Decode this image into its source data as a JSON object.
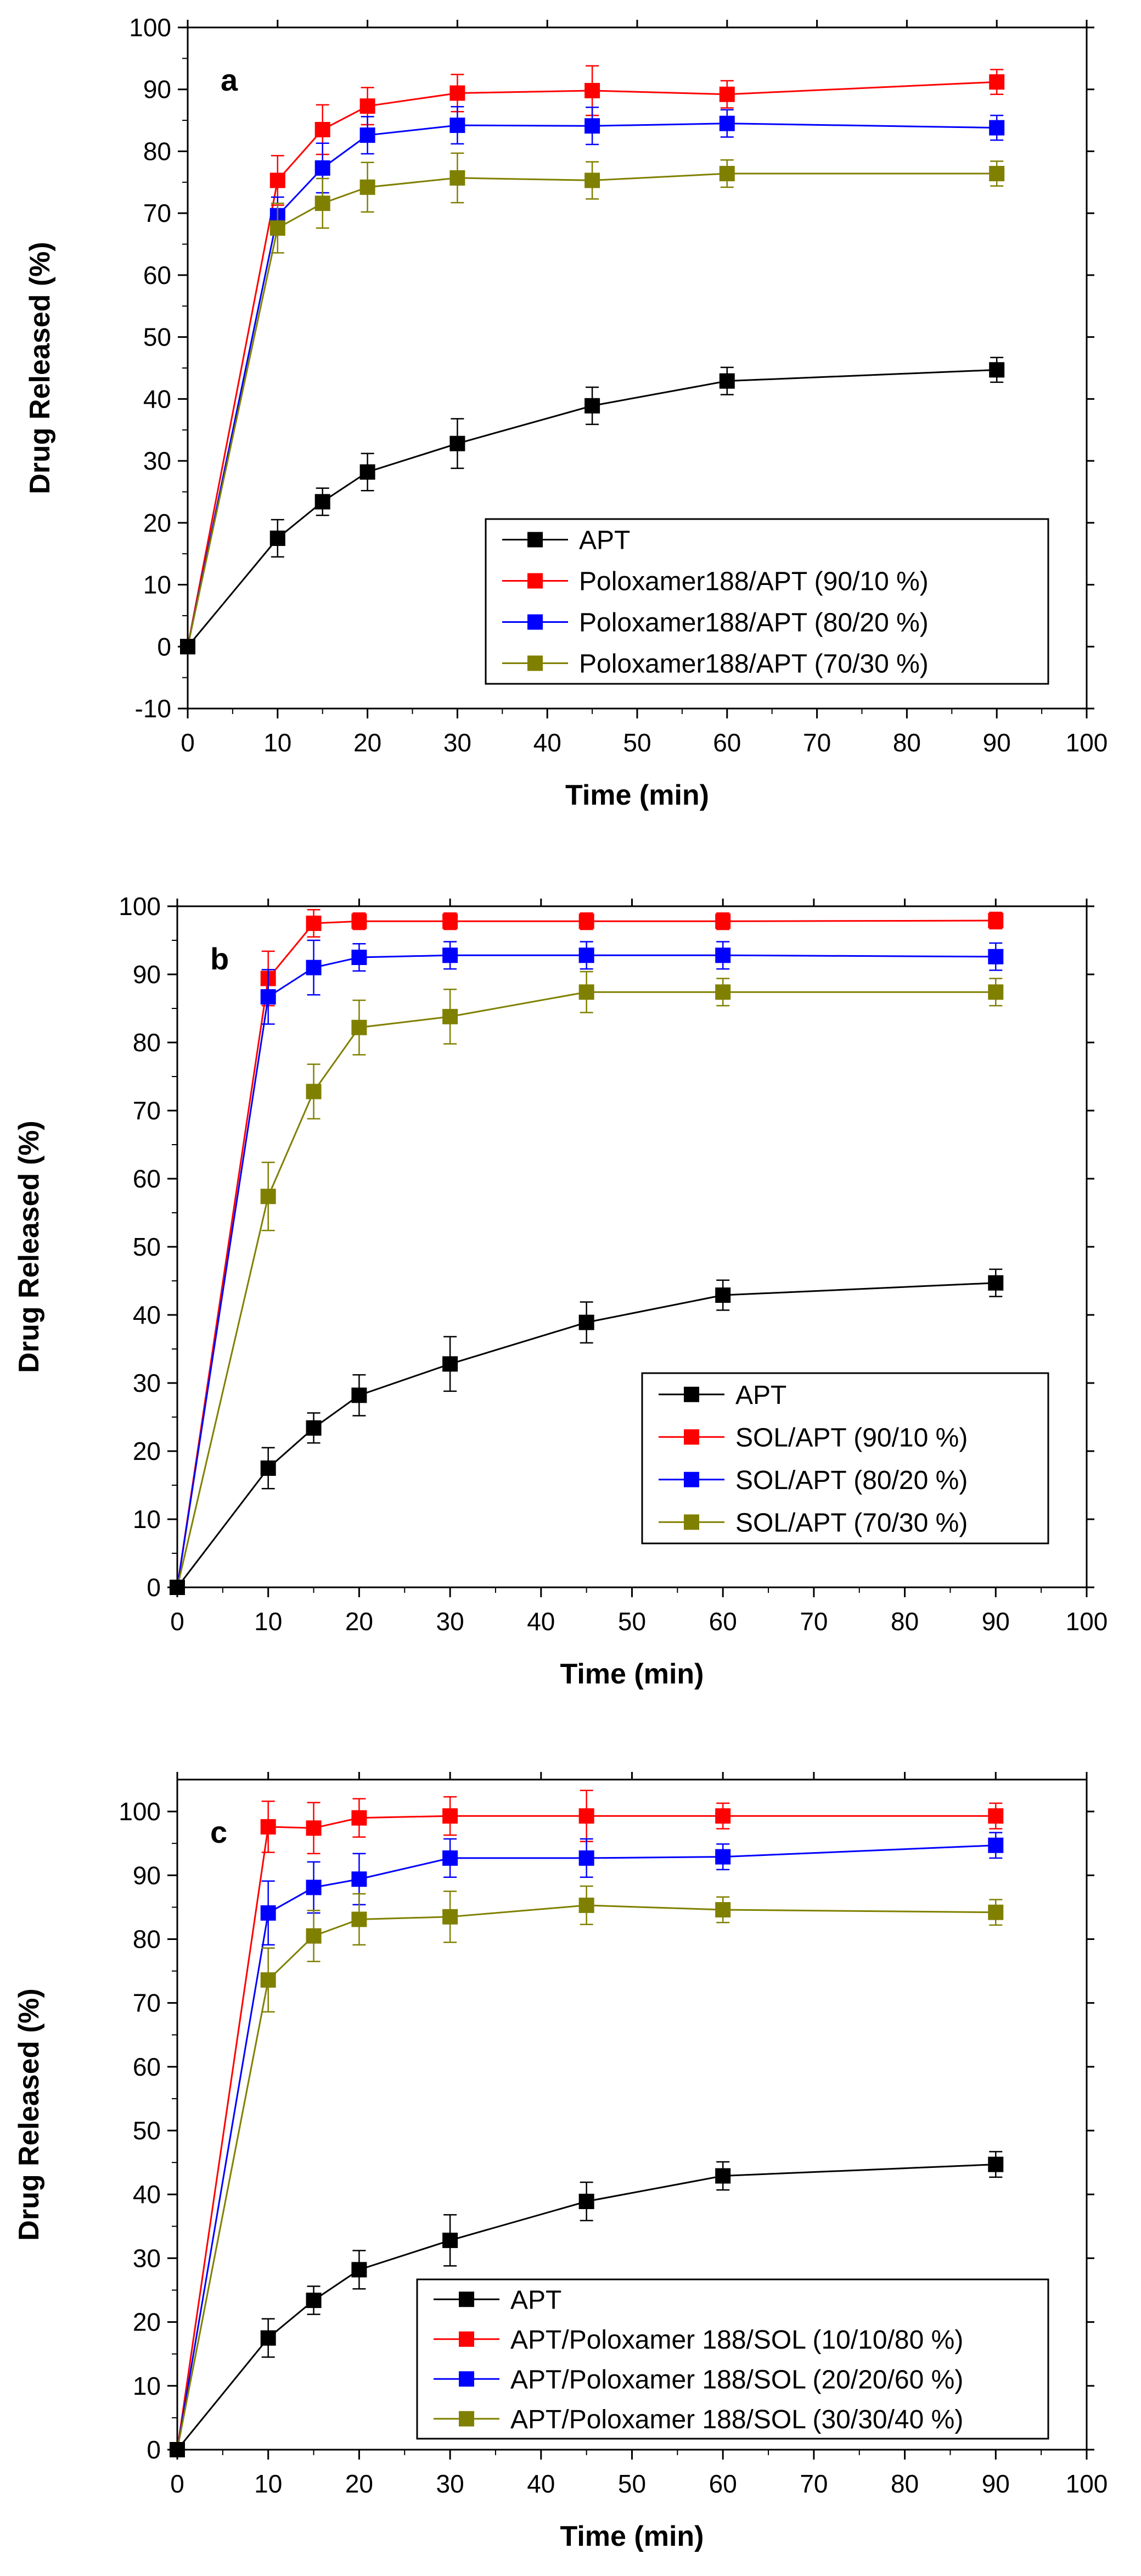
{
  "chart_data": [
    {
      "type": "line",
      "panel_label": "a",
      "xlabel": "Time (min)",
      "ylabel": "Drug Released (%)",
      "xlim": [
        0,
        100
      ],
      "ylim": [
        -10,
        100
      ],
      "xticks": [
        "0",
        "10",
        "20",
        "30",
        "40",
        "50",
        "60",
        "70",
        "80",
        "90",
        "100"
      ],
      "yticks": [
        "-10",
        "0",
        "10",
        "20",
        "30",
        "40",
        "50",
        "60",
        "70",
        "80",
        "90",
        "100"
      ],
      "legend_position": "bottom-right",
      "x": [
        0,
        10,
        15,
        20,
        30,
        45,
        60,
        90
      ],
      "series": [
        {
          "name": "APT",
          "color": "#000000",
          "values": [
            0,
            17.5,
            23.4,
            28.2,
            32.8,
            38.9,
            42.9,
            44.7
          ],
          "errors": [
            0,
            3.0,
            2.2,
            3.0,
            4.0,
            3.0,
            2.2,
            2.0
          ]
        },
        {
          "name": "Poloxamer188/APT (90/10 %)",
          "color": "#ff0000",
          "values": [
            0,
            75.3,
            83.5,
            87.3,
            89.4,
            89.8,
            89.2,
            91.2
          ],
          "errors": [
            0,
            4.0,
            4.0,
            3.0,
            3.0,
            4.0,
            2.2,
            2.0
          ]
        },
        {
          "name": "Poloxamer188/APT (80/20 %)",
          "color": "#0000ff",
          "values": [
            0,
            69.6,
            77.3,
            82.6,
            84.2,
            84.1,
            84.5,
            83.8
          ],
          "errors": [
            0,
            3.0,
            4.0,
            3.0,
            3.0,
            3.0,
            2.2,
            2.0
          ]
        },
        {
          "name": "Poloxamer188/APT (70/30 %)",
          "color": "#808000",
          "values": [
            0,
            67.6,
            71.6,
            74.2,
            75.7,
            75.3,
            76.4,
            76.4
          ],
          "errors": [
            0,
            4.0,
            4.0,
            4.0,
            4.0,
            3.0,
            2.2,
            2.0
          ]
        }
      ]
    },
    {
      "type": "line",
      "panel_label": "b",
      "xlabel": "Time (min)",
      "ylabel": "Drug Released (%)",
      "xlim": [
        0,
        100
      ],
      "ylim": [
        0,
        100
      ],
      "xticks": [
        "0",
        "10",
        "20",
        "30",
        "40",
        "50",
        "60",
        "70",
        "80",
        "90",
        "100"
      ],
      "yticks": [
        "0",
        "10",
        "20",
        "30",
        "40",
        "50",
        "60",
        "70",
        "80",
        "90",
        "100"
      ],
      "legend_position": "bottom-right",
      "x": [
        0,
        10,
        15,
        20,
        30,
        45,
        60,
        90
      ],
      "series": [
        {
          "name": "APT",
          "color": "#000000",
          "values": [
            0,
            17.5,
            23.4,
            28.2,
            32.8,
            38.9,
            42.9,
            44.7
          ],
          "errors": [
            0,
            3.0,
            2.2,
            3.0,
            4.0,
            3.0,
            2.2,
            2.0
          ]
        },
        {
          "name": "SOL/APT (90/10 %)",
          "color": "#ff0000",
          "values": [
            0,
            89.4,
            97.5,
            97.8,
            97.8,
            97.8,
            97.8,
            97.9
          ],
          "errors": [
            0,
            4.0,
            2.0,
            1.2,
            1.2,
            1.2,
            1.2,
            1.2
          ]
        },
        {
          "name": "SOL/APT (80/20 %)",
          "color": "#0000ff",
          "values": [
            0,
            86.7,
            91.0,
            92.5,
            92.8,
            92.8,
            92.8,
            92.6
          ],
          "errors": [
            0,
            4.0,
            4.0,
            2.0,
            2.0,
            2.0,
            2.0,
            2.0
          ]
        },
        {
          "name": "SOL/APT (70/30 %)",
          "color": "#808000",
          "values": [
            0,
            57.4,
            72.8,
            82.2,
            83.8,
            87.4,
            87.4,
            87.4
          ],
          "errors": [
            0,
            5.0,
            4.0,
            4.0,
            4.0,
            3.0,
            2.0,
            2.0
          ]
        }
      ]
    },
    {
      "type": "line",
      "panel_label": "c",
      "xlabel": "Time (min)",
      "ylabel": "Drug Released (%)",
      "xlim": [
        0,
        100
      ],
      "ylim": [
        0,
        105
      ],
      "xticks": [
        "0",
        "10",
        "20",
        "30",
        "40",
        "50",
        "60",
        "70",
        "80",
        "90",
        "100"
      ],
      "yticks": [
        "0",
        "10",
        "20",
        "30",
        "40",
        "50",
        "60",
        "70",
        "80",
        "90",
        "100"
      ],
      "legend_position": "bottom-right",
      "x": [
        0,
        10,
        15,
        20,
        30,
        45,
        60,
        90
      ],
      "series": [
        {
          "name": "APT",
          "color": "#000000",
          "values": [
            0,
            17.5,
            23.4,
            28.2,
            32.8,
            38.9,
            42.9,
            44.7
          ],
          "errors": [
            0,
            3.0,
            2.2,
            3.0,
            4.0,
            3.0,
            2.2,
            2.0
          ]
        },
        {
          "name": "APT/Poloxamer 188/SOL (10/10/80 %)",
          "color": "#ff0000",
          "values": [
            0,
            97.6,
            97.4,
            99.0,
            99.3,
            99.3,
            99.3,
            99.3
          ],
          "errors": [
            0,
            4.0,
            4.0,
            3.0,
            3.0,
            4.0,
            2.0,
            2.0
          ]
        },
        {
          "name": "APT/Poloxamer 188/SOL (20/20/60 %)",
          "color": "#0000ff",
          "values": [
            0,
            84.1,
            88.1,
            89.4,
            92.7,
            92.7,
            92.9,
            94.7
          ],
          "errors": [
            0,
            5.0,
            4.0,
            4.0,
            3.0,
            3.0,
            2.0,
            2.0
          ]
        },
        {
          "name": "APT/Poloxamer 188/SOL (30/30/40 %)",
          "color": "#808000",
          "values": [
            0,
            73.6,
            80.5,
            83.1,
            83.5,
            85.3,
            84.6,
            84.2
          ],
          "errors": [
            0,
            5.0,
            4.0,
            4.0,
            4.0,
            3.0,
            2.0,
            2.0
          ]
        }
      ]
    }
  ]
}
